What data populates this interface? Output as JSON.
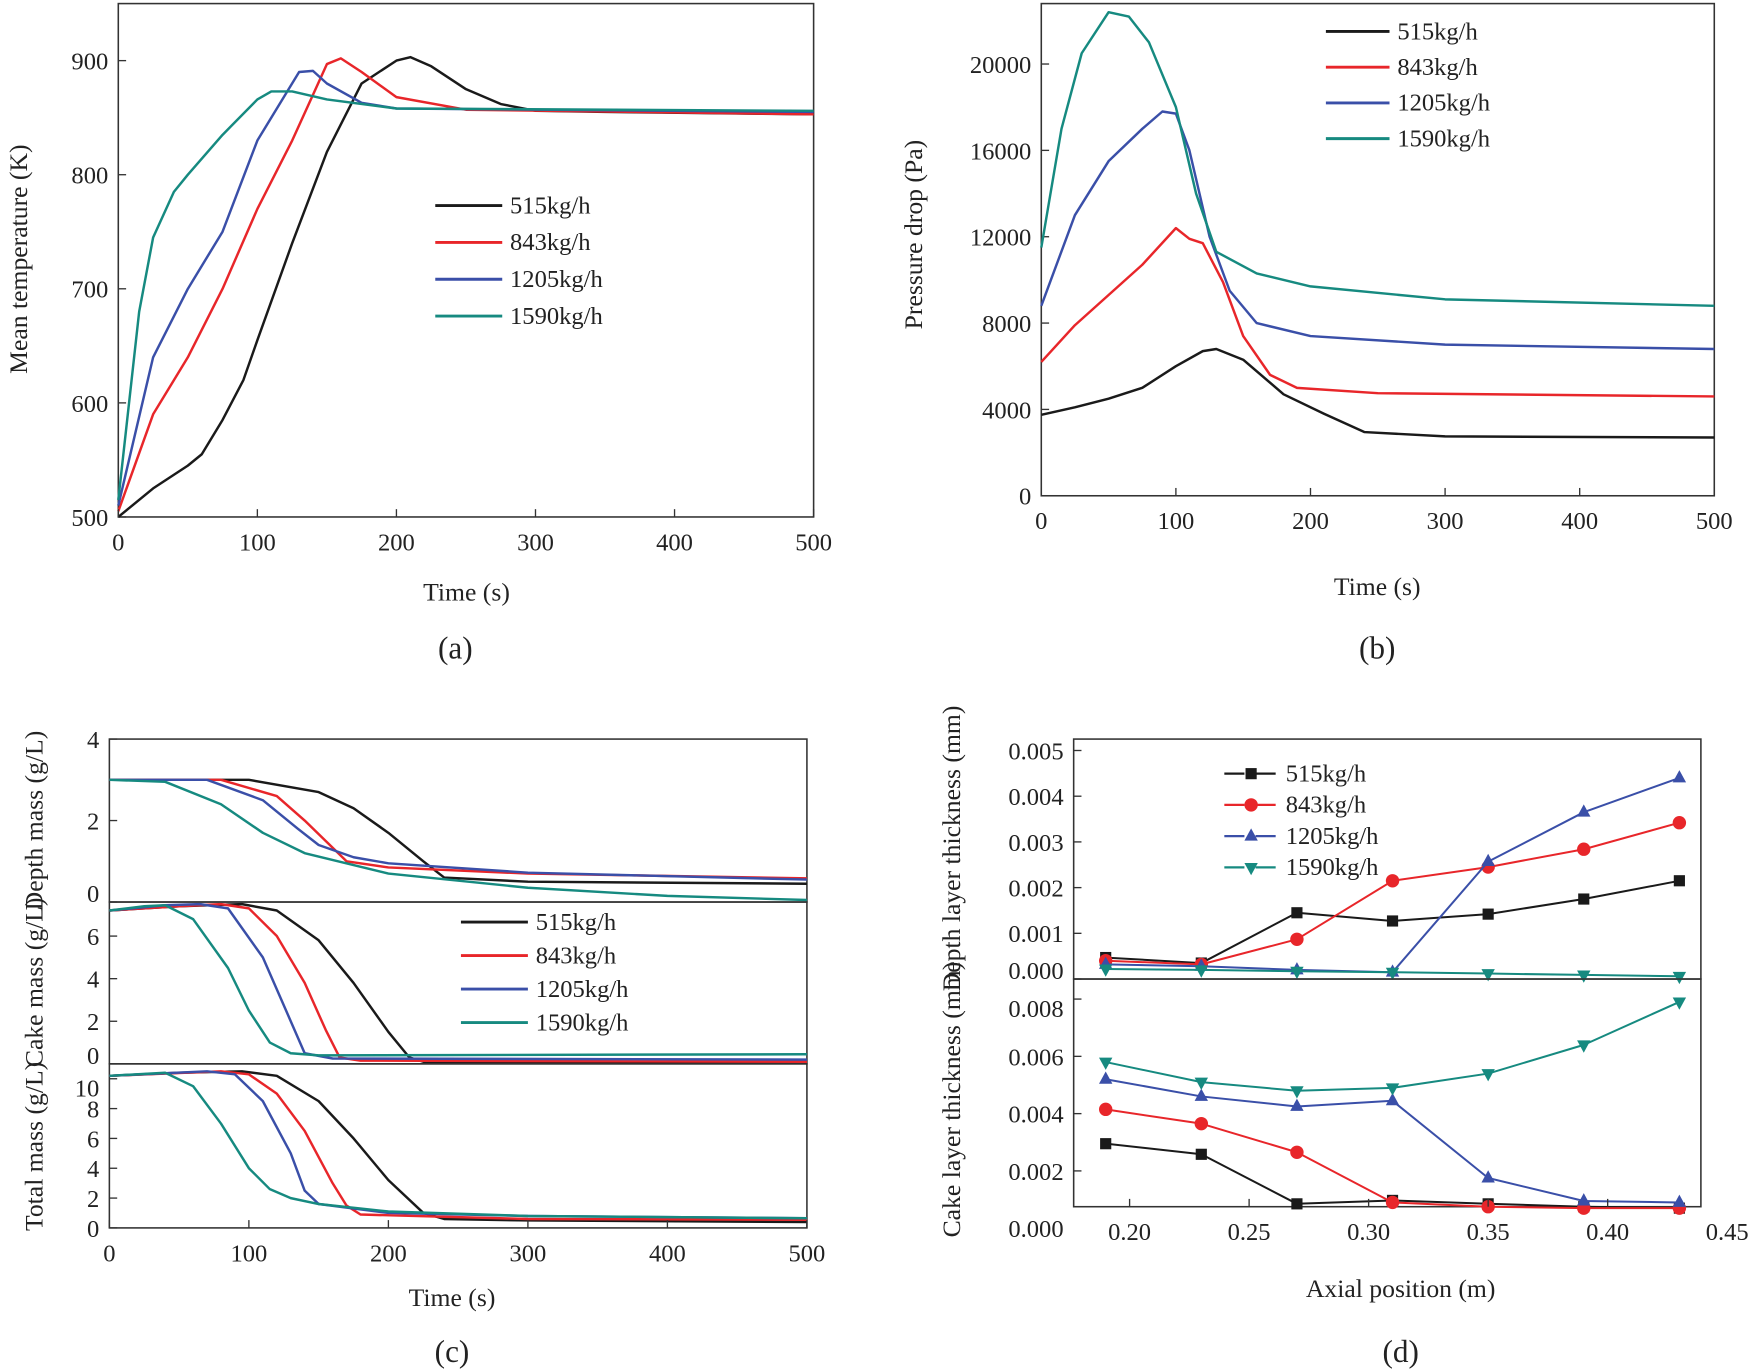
{
  "colors": {
    "515kg/h": "#1a1a1a",
    "843kg/h": "#e8262a",
    "1205kg/h": "#3a4fa8",
    "1590kg/h": "#168a80"
  },
  "chart_data": [
    {
      "panel_label": "(a)",
      "type": "line",
      "xlabel": "Time (s)",
      "ylabel": "Mean temperature (K)",
      "xlim": [
        0,
        500
      ],
      "ylim": [
        500,
        950
      ],
      "xticks": [
        "0",
        "100",
        "200",
        "300",
        "400",
        "500"
      ],
      "yticks": [
        "500",
        "600",
        "700",
        "800",
        "900"
      ],
      "legend": "center-right",
      "grid": false,
      "series": [
        {
          "name": "515kg/h",
          "x": [
            0,
            25,
            50,
            60,
            75,
            90,
            100,
            125,
            150,
            175,
            200,
            210,
            225,
            250,
            275,
            300,
            350,
            500
          ],
          "y": [
            500,
            525,
            545,
            555,
            585,
            620,
            655,
            740,
            820,
            880,
            900,
            903,
            895,
            875,
            862,
            856,
            855,
            853
          ]
        },
        {
          "name": "843kg/h",
          "x": [
            0,
            25,
            50,
            75,
            100,
            125,
            140,
            150,
            160,
            175,
            200,
            250,
            500
          ],
          "y": [
            505,
            590,
            640,
            700,
            770,
            830,
            870,
            897,
            902,
            890,
            868,
            857,
            853
          ]
        },
        {
          "name": "1205kg/h",
          "x": [
            0,
            25,
            50,
            75,
            100,
            120,
            130,
            140,
            150,
            175,
            200,
            500
          ],
          "y": [
            510,
            640,
            700,
            750,
            830,
            870,
            890,
            891,
            880,
            863,
            858,
            855
          ]
        },
        {
          "name": "1590kg/h",
          "x": [
            0,
            15,
            25,
            40,
            50,
            75,
            100,
            110,
            125,
            150,
            200,
            500
          ],
          "y": [
            515,
            680,
            745,
            785,
            800,
            835,
            866,
            873,
            873,
            866,
            858,
            856
          ]
        }
      ]
    },
    {
      "panel_label": "(b)",
      "type": "line",
      "xlabel": "Time (s)",
      "ylabel": "Pressure drop (Pa)",
      "xlim": [
        0,
        500
      ],
      "ylim": [
        0,
        22800
      ],
      "xticks": [
        "0",
        "100",
        "200",
        "300",
        "400",
        "500"
      ],
      "yticks": [
        "0",
        "4000",
        "8000",
        "12000",
        "16000",
        "20000"
      ],
      "legend": "top-right",
      "grid": false,
      "series": [
        {
          "name": "515kg/h",
          "x": [
            0,
            25,
            50,
            75,
            100,
            120,
            130,
            150,
            180,
            210,
            240,
            300,
            500
          ],
          "y": [
            3750,
            4100,
            4500,
            5000,
            6000,
            6700,
            6800,
            6300,
            4700,
            3800,
            2950,
            2750,
            2700
          ]
        },
        {
          "name": "843kg/h",
          "x": [
            0,
            25,
            50,
            75,
            100,
            110,
            120,
            135,
            150,
            170,
            190,
            250,
            500
          ],
          "y": [
            6200,
            7900,
            9300,
            10700,
            12400,
            11900,
            11700,
            9900,
            7400,
            5600,
            5000,
            4750,
            4600
          ]
        },
        {
          "name": "1205kg/h",
          "x": [
            0,
            25,
            50,
            75,
            90,
            100,
            110,
            125,
            140,
            160,
            200,
            300,
            500
          ],
          "y": [
            8800,
            13000,
            15500,
            17000,
            17800,
            17700,
            16000,
            12000,
            9500,
            8000,
            7400,
            7000,
            6800
          ]
        },
        {
          "name": "1590kg/h",
          "x": [
            0,
            15,
            30,
            50,
            65,
            80,
            100,
            115,
            130,
            160,
            200,
            300,
            500
          ],
          "y": [
            11500,
            17000,
            20500,
            22400,
            22200,
            21000,
            18000,
            14000,
            11300,
            10300,
            9700,
            9100,
            8800
          ]
        }
      ]
    },
    {
      "panel_label": "(c)",
      "type": "line",
      "xlabel": "Time (s)",
      "xlim": [
        0,
        500
      ],
      "xticks": [
        "0",
        "100",
        "200",
        "300",
        "400",
        "500"
      ],
      "legend": "center-right",
      "grid": false,
      "panels": [
        {
          "ylabel": "Depth mass (g/L)",
          "ylim": [
            0,
            4
          ],
          "yticks": [
            "0",
            "2",
            "4"
          ],
          "series": [
            {
              "name": "515kg/h",
              "x": [
                0,
                100,
                150,
                175,
                200,
                225,
                240,
                300,
                500
              ],
              "y": [
                3,
                3,
                2.7,
                2.3,
                1.7,
                1.0,
                0.6,
                0.5,
                0.45
              ]
            },
            {
              "name": "843kg/h",
              "x": [
                0,
                80,
                120,
                140,
                170,
                200,
                300,
                500
              ],
              "y": [
                3,
                3,
                2.6,
                2.0,
                1.0,
                0.85,
                0.7,
                0.58
              ]
            },
            {
              "name": "1205kg/h",
              "x": [
                0,
                70,
                110,
                135,
                150,
                175,
                200,
                300,
                500
              ],
              "y": [
                3,
                3,
                2.5,
                1.8,
                1.4,
                1.1,
                0.95,
                0.72,
                0.55
              ]
            },
            {
              "name": "1590kg/h",
              "x": [
                0,
                40,
                80,
                110,
                140,
                200,
                300,
                400,
                500
              ],
              "y": [
                3,
                2.95,
                2.4,
                1.7,
                1.2,
                0.7,
                0.35,
                0.15,
                0.05
              ]
            }
          ]
        },
        {
          "ylabel": "Cake mass (g/L)",
          "ylim": [
            0,
            7.6
          ],
          "yticks": [
            "0",
            "2",
            "4",
            "6"
          ],
          "series": [
            {
              "name": "515kg/h",
              "x": [
                0,
                50,
                95,
                120,
                150,
                175,
                200,
                215,
                225,
                500
              ],
              "y": [
                7.2,
                7.4,
                7.5,
                7.2,
                5.8,
                3.8,
                1.5,
                0.3,
                0.1,
                0.05
              ]
            },
            {
              "name": "843kg/h",
              "x": [
                0,
                50,
                80,
                100,
                120,
                140,
                155,
                165,
                180,
                500
              ],
              "y": [
                7.2,
                7.4,
                7.5,
                7.3,
                6.0,
                3.8,
                1.6,
                0.3,
                0.15,
                0.1
              ]
            },
            {
              "name": "1205kg/h",
              "x": [
                0,
                40,
                65,
                85,
                110,
                130,
                140,
                160,
                500
              ],
              "y": [
                7.2,
                7.45,
                7.5,
                7.3,
                5.0,
                2.0,
                0.5,
                0.25,
                0.2
              ]
            },
            {
              "name": "1590kg/h",
              "x": [
                0,
                25,
                40,
                60,
                85,
                100,
                115,
                130,
                150,
                500
              ],
              "y": [
                7.2,
                7.4,
                7.45,
                6.8,
                4.5,
                2.5,
                1.0,
                0.5,
                0.4,
                0.45
              ]
            }
          ]
        },
        {
          "ylabel": "Total mass (g/L)",
          "ylim": [
            0,
            11
          ],
          "yticks": [
            "0",
            "2",
            "4",
            "6",
            "8",
            "10"
          ],
          "series": [
            {
              "name": "515kg/h",
              "x": [
                0,
                50,
                95,
                120,
                150,
                175,
                200,
                225,
                240,
                300,
                500
              ],
              "y": [
                10.2,
                10.4,
                10.5,
                10.2,
                8.5,
                6.0,
                3.2,
                1.0,
                0.6,
                0.5,
                0.4
              ]
            },
            {
              "name": "843kg/h",
              "x": [
                0,
                80,
                100,
                120,
                140,
                160,
                170,
                180,
                300,
                500
              ],
              "y": [
                10.2,
                10.5,
                10.3,
                9.0,
                6.5,
                3.0,
                1.5,
                0.9,
                0.6,
                0.55
              ]
            },
            {
              "name": "1205kg/h",
              "x": [
                0,
                70,
                90,
                110,
                130,
                140,
                150,
                200,
                300,
                500
              ],
              "y": [
                10.2,
                10.5,
                10.3,
                8.5,
                5.0,
                2.5,
                1.6,
                1.0,
                0.8,
                0.65
              ]
            },
            {
              "name": "1590kg/h",
              "x": [
                0,
                40,
                60,
                80,
                100,
                115,
                130,
                150,
                200,
                300,
                500
              ],
              "y": [
                10.2,
                10.4,
                9.5,
                7.0,
                4.0,
                2.6,
                2.0,
                1.6,
                1.1,
                0.8,
                0.65
              ]
            }
          ]
        }
      ]
    },
    {
      "panel_label": "(d)",
      "type": "line",
      "xlabel": "Axial position (m)",
      "xlim": [
        0.1766,
        0.439
      ],
      "xticks": [
        "0.20",
        "0.25",
        "0.30",
        "0.35",
        "0.40",
        "0.45"
      ],
      "legend": "top-left",
      "grid": false,
      "markers": {
        "515kg/h": "square",
        "843kg/h": "circle",
        "1205kg/h": "triangle-up",
        "1590kg/h": "triangle-down"
      },
      "panels": [
        {
          "ylabel": "Depth layer thickness (mm)",
          "ylim": [
            0,
            0.00525
          ],
          "yticks": [
            "0.000",
            "0.001",
            "0.002",
            "0.003",
            "0.004",
            "0.005"
          ],
          "series": [
            {
              "name": "515kg/h",
              "x": [
                0.19,
                0.23,
                0.27,
                0.31,
                0.35,
                0.39,
                0.43
              ],
              "y": [
                0.00047,
                0.00035,
                0.00145,
                0.00127,
                0.00142,
                0.00175,
                0.00215
              ]
            },
            {
              "name": "843kg/h",
              "x": [
                0.19,
                0.23,
                0.27,
                0.31,
                0.35,
                0.39,
                0.43
              ],
              "y": [
                0.0004,
                0.00032,
                0.00087,
                0.00215,
                0.00245,
                0.00284,
                0.00342
              ]
            },
            {
              "name": "1205kg/h",
              "x": [
                0.19,
                0.23,
                0.27,
                0.31,
                0.35,
                0.39,
                0.43
              ],
              "y": [
                0.00032,
                0.00028,
                0.0002,
                0.00015,
                0.00257,
                0.00365,
                0.0044
              ]
            },
            {
              "name": "1590kg/h",
              "x": [
                0.19,
                0.23,
                0.27,
                0.31,
                0.35,
                0.39,
                0.43
              ],
              "y": [
                0.00022,
                0.0002,
                0.00017,
                0.00015,
                0.00012,
                9e-05,
                6e-05
              ]
            }
          ]
        },
        {
          "ylabel": "Cake layer thickness (mm)",
          "ylim": [
            0.00075,
            0.0087
          ],
          "yticks": [
            "0.000",
            "0.002",
            "0.004",
            "0.006",
            "0.008"
          ],
          "series": [
            {
              "name": "515kg/h",
              "x": [
                0.19,
                0.23,
                0.27,
                0.31,
                0.35,
                0.39,
                0.43
              ],
              "y": [
                0.00295,
                0.00258,
                0.00085,
                0.00097,
                0.00085,
                0.00075,
                0.0007
              ]
            },
            {
              "name": "843kg/h",
              "x": [
                0.19,
                0.23,
                0.27,
                0.31,
                0.35,
                0.39,
                0.43
              ],
              "y": [
                0.00415,
                0.00365,
                0.00265,
                0.0009,
                0.00075,
                0.0007,
                0.0007
              ]
            },
            {
              "name": "1205kg/h",
              "x": [
                0.19,
                0.23,
                0.27,
                0.31,
                0.35,
                0.39,
                0.43
              ],
              "y": [
                0.0052,
                0.0046,
                0.00425,
                0.00445,
                0.00175,
                0.00095,
                0.0009
              ]
            },
            {
              "name": "1590kg/h",
              "x": [
                0.19,
                0.23,
                0.27,
                0.31,
                0.35,
                0.39,
                0.43
              ],
              "y": [
                0.0058,
                0.0051,
                0.0048,
                0.0049,
                0.0054,
                0.0064,
                0.0079
              ]
            }
          ]
        }
      ]
    }
  ]
}
